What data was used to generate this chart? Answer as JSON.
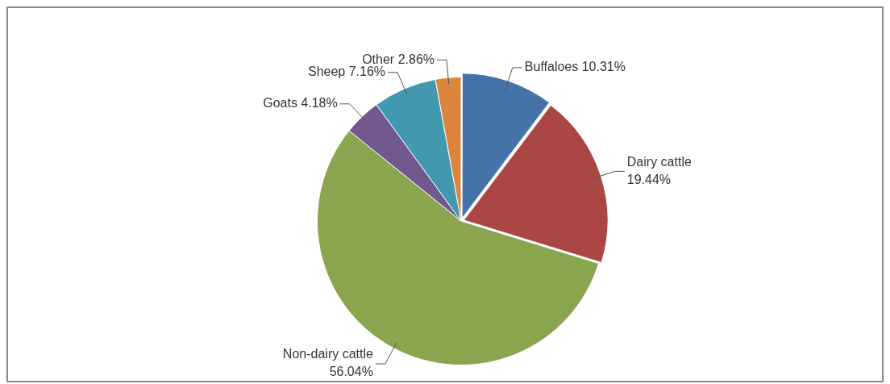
{
  "chart_data": {
    "type": "pie",
    "categories": [
      "Buffaloes",
      "Dairy cattle",
      "Non-dairy cattle",
      "Goats",
      "Sheep",
      "Other"
    ],
    "values": [
      10.31,
      19.44,
      56.04,
      4.18,
      7.16,
      2.86
    ],
    "value_labels": [
      "10.31%",
      "19.44%",
      "56.04%",
      "4.18%",
      "7.16%",
      "2.86%"
    ],
    "colors": [
      "#4572a7",
      "#aa4643",
      "#89a54e",
      "#71588f",
      "#4198af",
      "#db843d"
    ],
    "legend": false
  }
}
